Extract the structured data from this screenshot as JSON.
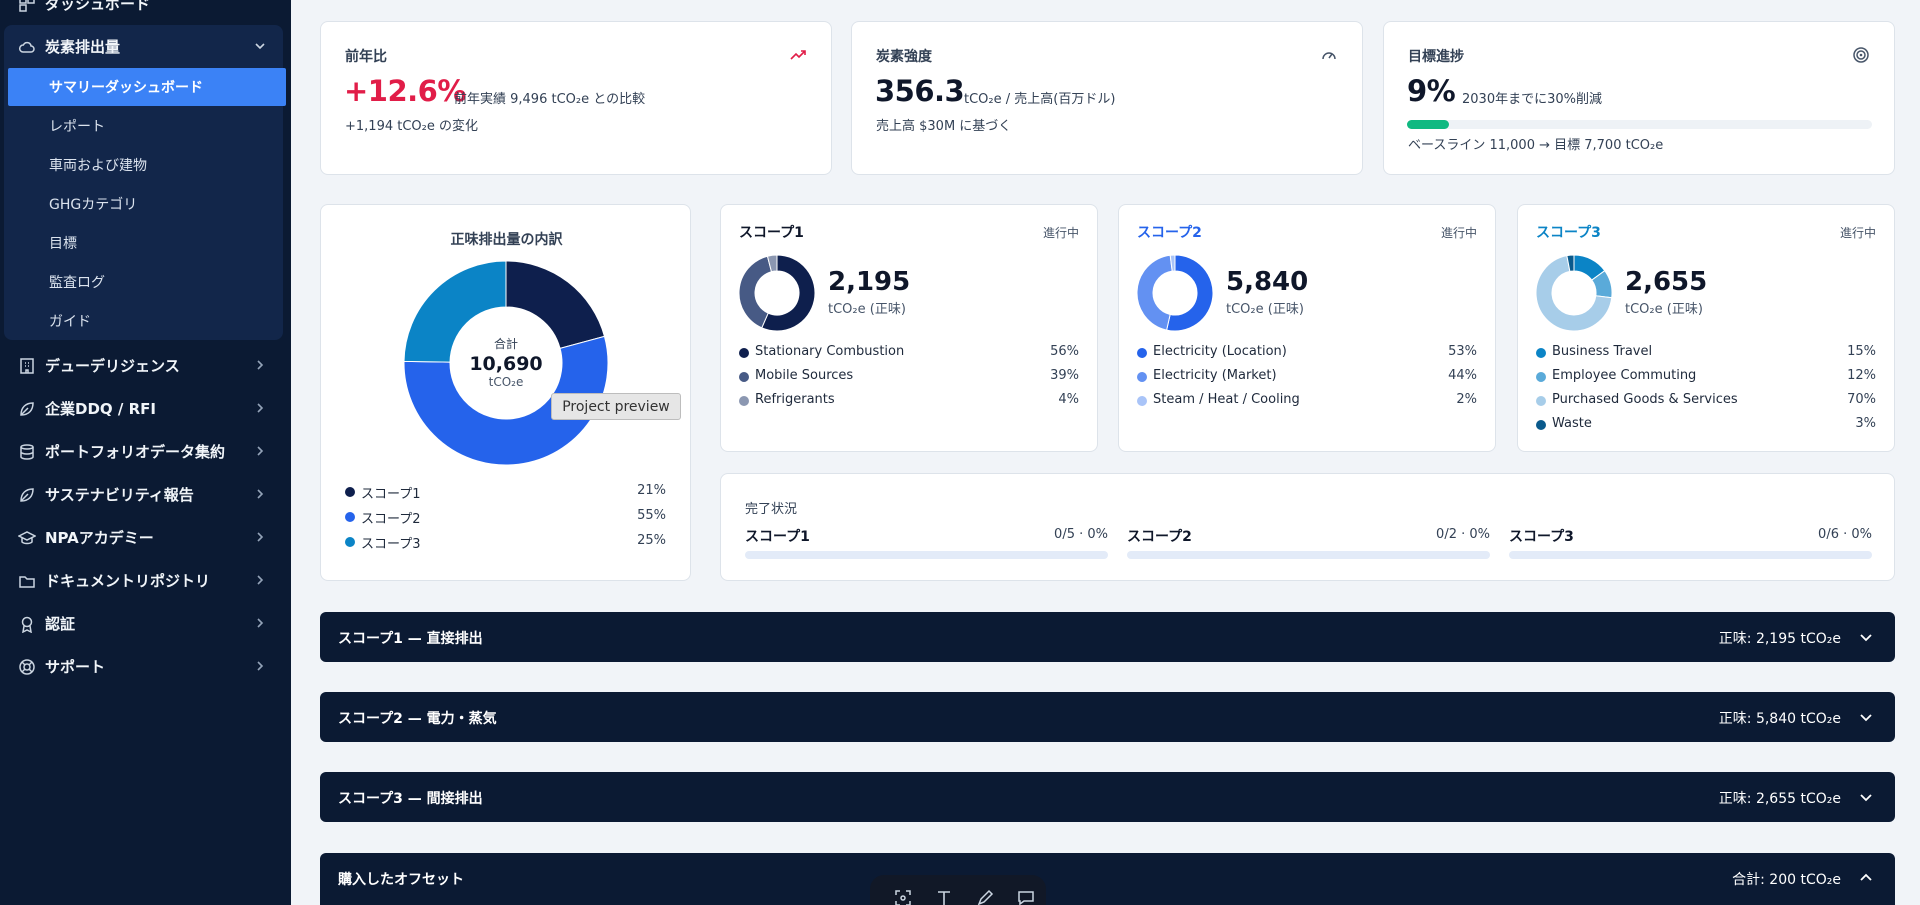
{
  "sidebar": {
    "top_partial_label": "ダッシュボード",
    "carbon_group": {
      "label": "炭素排出量",
      "items": [
        {
          "label": "サマリーダッシュボード",
          "active": true
        },
        {
          "label": "レポート"
        },
        {
          "label": "車両および建物"
        },
        {
          "label": "GHGカテゴリ"
        },
        {
          "label": "目標"
        },
        {
          "label": "監査ログ"
        },
        {
          "label": "ガイド"
        }
      ]
    },
    "items": [
      {
        "label": "デューデリジェンス",
        "icon": "building-icon"
      },
      {
        "label": "企業DDQ / RFI",
        "icon": "leaf-icon"
      },
      {
        "label": "ポートフォリオデータ集約",
        "icon": "database-icon"
      },
      {
        "label": "サステナビリティ報告",
        "icon": "leaf-icon"
      },
      {
        "label": "NPAアカデミー",
        "icon": "graduation-cap-icon"
      },
      {
        "label": "ドキュメントリポジトリ",
        "icon": "folder-icon"
      },
      {
        "label": "認証",
        "icon": "award-icon"
      },
      {
        "label": "サポート",
        "icon": "lifebuoy-icon"
      }
    ]
  },
  "kpis": {
    "yoy": {
      "label": "前年比",
      "value": "+12.6%",
      "comparison": "前年実績 9,496 tCO₂e との比較",
      "change": "+1,194 tCO₂e の変化",
      "color": "#e11d48"
    },
    "intensity": {
      "label": "炭素強度",
      "value": "356.3",
      "unit": "tCO₂e / 売上高(百万ドル)",
      "note": "売上高 $30M に基づく"
    },
    "target": {
      "label": "目標進捗",
      "value": "9%",
      "goal": "2030年までに30%削減",
      "progress": 0.09,
      "baseline": "ベースライン 11,000 → 目標 7,700 tCO₂e",
      "color": "#10b981"
    }
  },
  "breakdown": {
    "title": "正味排出量の内訳",
    "center_label": "合計",
    "center_value": "10,690",
    "center_unit": "tCO₂e",
    "legend": [
      {
        "name": "スコープ1",
        "pct": "21%",
        "value": 21,
        "color": "#0e1f4d"
      },
      {
        "name": "スコープ2",
        "pct": "55%",
        "value": 55,
        "color": "#2563eb"
      },
      {
        "name": "スコープ3",
        "pct": "25%",
        "value": 25,
        "color": "#0b84c6"
      }
    ]
  },
  "tooltip": "Project preview",
  "scopes": [
    {
      "title": "スコープ1",
      "status": "進行中",
      "value": "2,195",
      "unit": "tCO₂e (正味)",
      "title_color": "#0f172a",
      "items": [
        {
          "name": "Stationary Combustion",
          "pct": "56%",
          "value": 56,
          "color": "#0e1f4d"
        },
        {
          "name": "Mobile Sources",
          "pct": "39%",
          "value": 39,
          "color": "#475a85"
        },
        {
          "name": "Refrigerants",
          "pct": "4%",
          "value": 4,
          "color": "#8b97b1"
        }
      ]
    },
    {
      "title": "スコープ2",
      "status": "進行中",
      "value": "5,840",
      "unit": "tCO₂e (正味)",
      "title_color": "#2563eb",
      "items": [
        {
          "name": "Electricity (Location)",
          "pct": "53%",
          "value": 53,
          "color": "#2563eb"
        },
        {
          "name": "Electricity (Market)",
          "pct": "44%",
          "value": 44,
          "color": "#6391f2"
        },
        {
          "name": "Steam / Heat / Cooling",
          "pct": "2%",
          "value": 2,
          "color": "#a9c4f8"
        }
      ]
    },
    {
      "title": "スコープ3",
      "status": "進行中",
      "value": "2,655",
      "unit": "tCO₂e (正味)",
      "title_color": "#0b84c6",
      "items": [
        {
          "name": "Business Travel",
          "pct": "15%",
          "value": 15,
          "color": "#0b84c6"
        },
        {
          "name": "Employee Commuting",
          "pct": "12%",
          "value": 12,
          "color": "#5aaad9"
        },
        {
          "name": "Purchased Goods & Services",
          "pct": "70%",
          "value": 70,
          "color": "#a7cde9"
        },
        {
          "name": "Waste",
          "pct": "3%",
          "value": 3,
          "color": "#0a5a8c"
        }
      ]
    }
  ],
  "completion": {
    "title": "完了状況",
    "items": [
      {
        "name": "スコープ1",
        "value": "0/5 · 0%"
      },
      {
        "name": "スコープ2",
        "value": "0/2 · 0%"
      },
      {
        "name": "スコープ3",
        "value": "0/6 · 0%"
      }
    ]
  },
  "accordions": [
    {
      "title": "スコープ1 — 直接排出",
      "total": "正味: 2,195 tCO₂e",
      "expanded": false
    },
    {
      "title": "スコープ2 — 電力・蒸気",
      "total": "正味: 5,840 tCO₂e",
      "expanded": false
    },
    {
      "title": "スコープ3 — 間接排出",
      "total": "正味: 2,655 tCO₂e",
      "expanded": false
    },
    {
      "title": "購入したオフセット",
      "total": "合計: 200 tCO₂e",
      "expanded": true
    }
  ]
}
